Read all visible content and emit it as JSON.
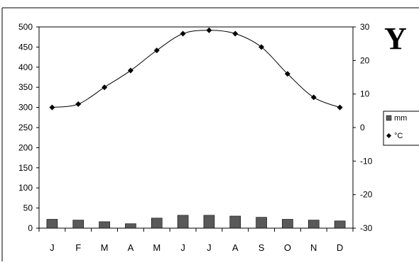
{
  "chart_data": {
    "type": "bar+line",
    "corner_label": "Y",
    "categories": [
      "J",
      "F",
      "M",
      "A",
      "M",
      "J",
      "J",
      "A",
      "S",
      "O",
      "N",
      "D"
    ],
    "left_axis": {
      "ylim": [
        0,
        500
      ],
      "ticks": [
        0,
        50,
        100,
        150,
        200,
        250,
        300,
        350,
        400,
        450,
        500
      ]
    },
    "right_axis": {
      "ylim": [
        -30,
        30
      ],
      "ticks": [
        -30,
        -20,
        -10,
        0,
        10,
        20,
        30
      ]
    },
    "series": [
      {
        "name": "mm",
        "type": "bar",
        "axis": "left",
        "values": [
          22,
          20,
          16,
          11,
          25,
          32,
          32,
          30,
          27,
          22,
          20,
          18
        ],
        "color": "#595959"
      },
      {
        "name": "°C",
        "type": "line",
        "axis": "right",
        "values": [
          6,
          7,
          12,
          17,
          23,
          28,
          29,
          28,
          24,
          16,
          9,
          6
        ],
        "color": "#000000"
      }
    ],
    "grid": false,
    "legend_position": "right"
  }
}
